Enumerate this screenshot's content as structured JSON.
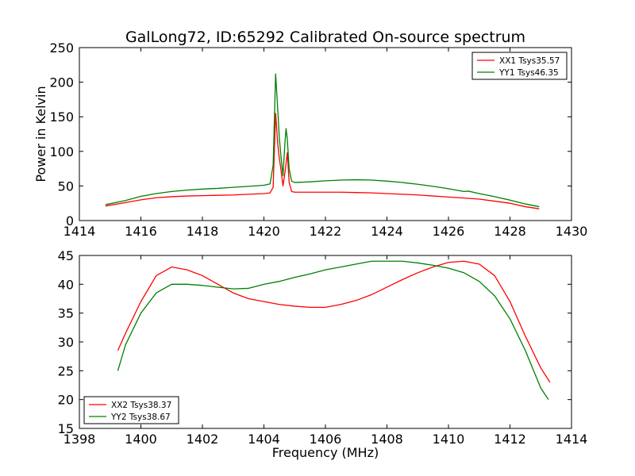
{
  "title": "GalLong72, ID:65292 Calibrated On-source spectrum",
  "chart_data": [
    {
      "type": "line",
      "title": "GalLong72, ID:65292 Calibrated On-source spectrum",
      "xlabel": "",
      "ylabel": "Power in Kelvin",
      "xlim": [
        1414,
        1430
      ],
      "ylim": [
        0,
        250
      ],
      "xticks": [
        1414,
        1416,
        1418,
        1420,
        1422,
        1424,
        1426,
        1428,
        1430
      ],
      "yticks": [
        0,
        50,
        100,
        150,
        200,
        250
      ],
      "grid": false,
      "legend_position": "top-right",
      "series": [
        {
          "name": "XX1 Tsys35.57",
          "color": "#ff0000",
          "x": [
            1414.85,
            1415.5,
            1416,
            1416.5,
            1417,
            1417.5,
            1418,
            1418.5,
            1419,
            1419.5,
            1420,
            1420.2,
            1420.3,
            1420.38,
            1420.45,
            1420.5,
            1420.55,
            1420.62,
            1420.7,
            1420.76,
            1420.82,
            1420.9,
            1421,
            1421.5,
            1422,
            1422.5,
            1423,
            1423.5,
            1424,
            1424.5,
            1425,
            1425.5,
            1426,
            1426.5,
            1427,
            1427.5,
            1428,
            1428.5,
            1428.95
          ],
          "y": [
            21,
            26,
            30,
            33,
            34.5,
            35.5,
            36,
            36.5,
            37,
            38,
            39,
            40,
            48,
            155,
            110,
            90,
            75,
            50,
            75,
            98,
            55,
            42,
            41,
            41,
            41,
            41,
            40.5,
            40,
            39,
            38,
            37,
            35.5,
            34,
            32.5,
            31,
            28,
            25,
            20,
            17
          ]
        },
        {
          "name": "YY1 Tsys46.35",
          "color": "#008000",
          "x": [
            1414.85,
            1415.5,
            1416,
            1416.5,
            1417,
            1417.5,
            1418,
            1418.5,
            1419,
            1419.5,
            1420,
            1420.2,
            1420.3,
            1420.38,
            1420.45,
            1420.5,
            1420.55,
            1420.62,
            1420.68,
            1420.72,
            1420.76,
            1420.82,
            1420.9,
            1421,
            1421.5,
            1422,
            1422.5,
            1423,
            1423.5,
            1424,
            1424.5,
            1425,
            1425.5,
            1426,
            1426.5,
            1426.65,
            1427,
            1427.5,
            1428,
            1428.5,
            1428.95
          ],
          "y": [
            23,
            29,
            35,
            39,
            42,
            44,
            45.5,
            46.5,
            48,
            49.5,
            51,
            53,
            80,
            212,
            160,
            120,
            95,
            65,
            110,
            133,
            118,
            75,
            57,
            55,
            56,
            57.5,
            58.5,
            59,
            58.5,
            57,
            55,
            52.5,
            49.5,
            46,
            42,
            42.5,
            39,
            34.5,
            29.5,
            24,
            20
          ]
        }
      ]
    },
    {
      "type": "line",
      "title": "",
      "xlabel": "Frequency (MHz)",
      "ylabel": "",
      "xlim": [
        1398,
        1414
      ],
      "ylim": [
        15,
        45
      ],
      "xticks": [
        1398,
        1400,
        1402,
        1404,
        1406,
        1408,
        1410,
        1412,
        1414
      ],
      "yticks": [
        15,
        20,
        25,
        30,
        35,
        40,
        45
      ],
      "grid": false,
      "legend_position": "bottom-left",
      "series": [
        {
          "name": "XX2 Tsys38.37",
          "color": "#ff0000",
          "x": [
            1399.25,
            1399.5,
            1400,
            1400.5,
            1401,
            1401.5,
            1402,
            1402.5,
            1403,
            1403.5,
            1404,
            1404.5,
            1405,
            1405.5,
            1406,
            1406.5,
            1407,
            1407.5,
            1408,
            1408.5,
            1409,
            1409.5,
            1410,
            1410.5,
            1411,
            1411.5,
            1412,
            1412.5,
            1413,
            1413.3
          ],
          "y": [
            28.5,
            31.5,
            37,
            41.5,
            43,
            42.5,
            41.5,
            40,
            38.5,
            37.5,
            37,
            36.5,
            36.2,
            36,
            36,
            36.5,
            37.2,
            38.2,
            39.5,
            40.8,
            42,
            43,
            43.8,
            44,
            43.5,
            41.5,
            37,
            31,
            25.5,
            23
          ]
        },
        {
          "name": "YY2 Tsys38.67",
          "color": "#008000",
          "x": [
            1399.25,
            1399.5,
            1400,
            1400.5,
            1401,
            1401.5,
            1402,
            1402.5,
            1403,
            1403.5,
            1404,
            1404.5,
            1405,
            1405.5,
            1406,
            1406.5,
            1407,
            1407.5,
            1408,
            1408.5,
            1409,
            1409.5,
            1410,
            1410.5,
            1411,
            1411.5,
            1412,
            1412.5,
            1413,
            1413.25
          ],
          "y": [
            25,
            29.5,
            35,
            38.5,
            40,
            40,
            39.8,
            39.5,
            39.2,
            39.3,
            40,
            40.5,
            41.2,
            41.8,
            42.5,
            43,
            43.5,
            44,
            44,
            44,
            43.7,
            43.3,
            42.8,
            42,
            40.5,
            38,
            34,
            28.5,
            22,
            20
          ]
        }
      ]
    }
  ]
}
